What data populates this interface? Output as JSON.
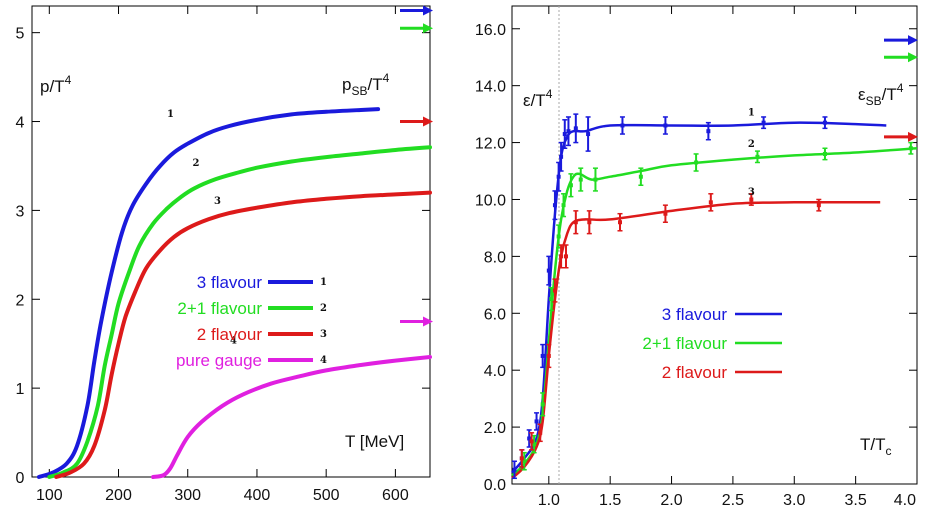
{
  "colors": {
    "blue": "#1a1adc",
    "green": "#22dd22",
    "red": "#dd1a1a",
    "magenta": "#e020e0",
    "frame": "#000000"
  },
  "chart_data": [
    {
      "type": "line",
      "ylabel": "p/T4",
      "ylabel_parts": {
        "base": "p/T",
        "sup": "4"
      },
      "sb_label_parts": {
        "base": "p",
        "sub": "SB",
        "mid": "/T",
        "sup": "4"
      },
      "xlabel": "T [MeV]",
      "xlim": [
        75,
        650
      ],
      "ylim": [
        0,
        5.3
      ],
      "xticks": [
        "100",
        "200",
        "300",
        "400",
        "500",
        "600"
      ],
      "yticks": [
        "0",
        "1",
        "2",
        "3",
        "4",
        "5"
      ],
      "series": [
        {
          "name": "3 flavour",
          "color": "blue",
          "curve_label": "1",
          "x": [
            85,
            105,
            125,
            140,
            155,
            165,
            175,
            190,
            205,
            220,
            240,
            260,
            280,
            300,
            330,
            360,
            400,
            450,
            500,
            550,
            575
          ],
          "y": [
            0,
            0.05,
            0.15,
            0.35,
            0.8,
            1.3,
            1.75,
            2.3,
            2.75,
            3.05,
            3.3,
            3.5,
            3.65,
            3.75,
            3.87,
            3.95,
            4.02,
            4.08,
            4.11,
            4.13,
            4.14
          ]
        },
        {
          "name": "2+1 flavour",
          "color": "green",
          "curve_label": "2",
          "x": [
            100,
            120,
            140,
            155,
            170,
            180,
            190,
            200,
            215,
            230,
            250,
            270,
            290,
            310,
            340,
            370,
            400,
            450,
            500,
            550,
            600,
            650
          ],
          "y": [
            0,
            0.05,
            0.15,
            0.4,
            0.8,
            1.25,
            1.6,
            1.95,
            2.3,
            2.6,
            2.85,
            3.02,
            3.15,
            3.25,
            3.35,
            3.42,
            3.48,
            3.55,
            3.6,
            3.64,
            3.68,
            3.71
          ]
        },
        {
          "name": "2 flavour",
          "color": "red",
          "curve_label": "3",
          "x": [
            110,
            130,
            150,
            165,
            180,
            190,
            200,
            210,
            225,
            240,
            260,
            280,
            300,
            330,
            360,
            400,
            450,
            500,
            550,
            600,
            650
          ],
          "y": [
            0,
            0.05,
            0.15,
            0.35,
            0.75,
            1.15,
            1.5,
            1.8,
            2.1,
            2.35,
            2.55,
            2.7,
            2.8,
            2.9,
            2.97,
            3.03,
            3.09,
            3.13,
            3.16,
            3.18,
            3.2
          ]
        },
        {
          "name": "pure gauge",
          "color": "magenta",
          "curve_label": "4",
          "x": [
            250,
            265,
            275,
            285,
            300,
            320,
            350,
            380,
            420,
            460,
            500,
            550,
            600,
            650
          ],
          "y": [
            0,
            0.02,
            0.1,
            0.25,
            0.45,
            0.62,
            0.8,
            0.93,
            1.05,
            1.13,
            1.2,
            1.26,
            1.31,
            1.35
          ]
        }
      ],
      "sb_limits": [
        {
          "color": "blue",
          "y": 5.25
        },
        {
          "color": "green",
          "y": 5.05
        },
        {
          "color": "red",
          "y": 4.0
        },
        {
          "color": "magenta",
          "y": 1.75
        }
      ],
      "legend_position": "center-right"
    },
    {
      "type": "line",
      "ylabel": "ε/T4",
      "ylabel_parts": {
        "base": "ε/T",
        "sup": "4"
      },
      "sb_label_parts": {
        "base": "ε",
        "sub": "SB",
        "mid": "/T",
        "sup": "4"
      },
      "xlabel": "T/Tc",
      "xlabel_parts": {
        "base": "T/T",
        "sub": "c"
      },
      "xlim": [
        0.7,
        4.0
      ],
      "ylim": [
        0,
        16.8
      ],
      "xticks": [
        "1.0",
        "1.5",
        "2.0",
        "2.5",
        "3.0",
        "3.5",
        "4.0"
      ],
      "yticks": [
        "0.0",
        "2.0",
        "4.0",
        "6.0",
        "8.0",
        "10.0",
        "12.0",
        "14.0",
        "16.0"
      ],
      "series": [
        {
          "name": "3 flavour",
          "color": "blue",
          "curve_label": "1",
          "x": [
            0.7,
            0.8,
            0.9,
            0.95,
            1.0,
            1.05,
            1.1,
            1.15,
            1.2,
            1.3,
            1.5,
            2.0,
            2.5,
            3.0,
            3.5,
            3.75
          ],
          "y": [
            0.4,
            0.9,
            1.6,
            3.0,
            6.5,
            9.5,
            11.5,
            12.2,
            12.4,
            12.4,
            12.6,
            12.6,
            12.6,
            12.7,
            12.65,
            12.6
          ],
          "points": {
            "x": [
              0.72,
              0.78,
              0.84,
              0.9,
              0.95,
              1.0,
              1.05,
              1.08,
              1.1,
              1.13,
              1.16,
              1.22,
              1.32,
              1.6,
              1.95,
              2.3,
              2.75,
              3.25
            ],
            "y": [
              0.5,
              0.9,
              1.6,
              2.2,
              4.5,
              7.5,
              9.8,
              10.8,
              11.5,
              12.3,
              12.4,
              12.5,
              12.3,
              12.6,
              12.6,
              12.4,
              12.7,
              12.7
            ],
            "err": [
              0.3,
              0.3,
              0.3,
              0.3,
              0.4,
              0.5,
              0.5,
              0.5,
              0.5,
              0.5,
              0.5,
              0.5,
              0.6,
              0.3,
              0.3,
              0.3,
              0.2,
              0.2
            ]
          }
        },
        {
          "name": "2+1 flavour",
          "color": "green",
          "curve_label": "2",
          "x": [
            0.7,
            0.8,
            0.9,
            0.95,
            1.0,
            1.05,
            1.1,
            1.15,
            1.2,
            1.25,
            1.35,
            1.5,
            1.75,
            2.0,
            2.5,
            3.0,
            3.5,
            4.0
          ],
          "y": [
            0.3,
            0.7,
            1.4,
            2.5,
            5.0,
            7.5,
            9.3,
            10.3,
            10.8,
            10.9,
            10.7,
            10.8,
            11.0,
            11.2,
            11.4,
            11.55,
            11.65,
            11.8
          ],
          "points": {
            "x": [
              0.8,
              0.88,
              0.95,
              1.02,
              1.08,
              1.12,
              1.18,
              1.26,
              1.38,
              1.75,
              2.2,
              2.7,
              3.25,
              3.95
            ],
            "y": [
              0.8,
              1.4,
              2.8,
              6.5,
              8.7,
              9.8,
              10.5,
              10.7,
              10.7,
              10.8,
              11.3,
              11.5,
              11.6,
              11.8
            ],
            "err": [
              0.3,
              0.3,
              0.4,
              0.4,
              0.4,
              0.4,
              0.4,
              0.4,
              0.4,
              0.3,
              0.3,
              0.2,
              0.2,
              0.2
            ]
          }
        },
        {
          "name": "2 flavour",
          "color": "red",
          "curve_label": "3",
          "x": [
            0.7,
            0.8,
            0.9,
            0.95,
            1.0,
            1.05,
            1.1,
            1.15,
            1.2,
            1.3,
            1.5,
            2.0,
            2.5,
            3.0,
            3.5,
            3.7
          ],
          "y": [
            0.2,
            0.6,
            1.3,
            2.2,
            4.5,
            6.5,
            8.0,
            8.8,
            9.2,
            9.3,
            9.3,
            9.6,
            9.85,
            9.9,
            9.9,
            9.9
          ],
          "points": {
            "x": [
              0.78,
              0.86,
              0.93,
              1.0,
              1.05,
              1.1,
              1.14,
              1.22,
              1.33,
              1.58,
              1.95,
              2.32,
              2.65,
              3.2
            ],
            "y": [
              0.9,
              1.5,
              1.8,
              4.5,
              6.8,
              8.0,
              8.0,
              9.2,
              9.2,
              9.2,
              9.5,
              9.9,
              10.0,
              9.8
            ],
            "err": [
              0.3,
              0.3,
              0.3,
              0.4,
              0.4,
              0.4,
              0.4,
              0.4,
              0.4,
              0.3,
              0.3,
              0.3,
              0.2,
              0.2
            ]
          }
        }
      ],
      "sb_limits": [
        {
          "color": "blue",
          "y": 15.6
        },
        {
          "color": "green",
          "y": 15.0
        },
        {
          "color": "red",
          "y": 12.2
        }
      ],
      "legend_position": "center-right"
    }
  ]
}
